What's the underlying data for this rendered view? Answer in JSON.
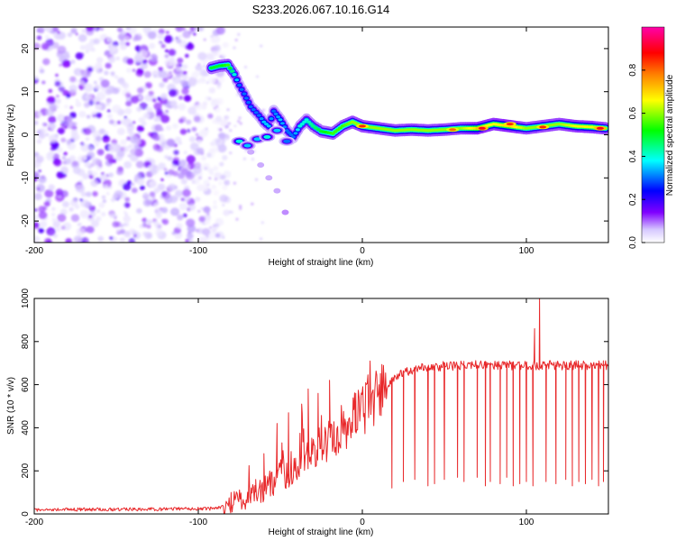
{
  "figure_title": "S233.2026.067.10.16.G14",
  "chart_data": [
    {
      "type": "heatmap",
      "title": "S233.2026.067.10.16.G14",
      "xlabel": "Height of straight line (km)",
      "ylabel": "Frequency (Hz)",
      "xlim": [
        -200,
        150
      ],
      "ylim": [
        -25,
        25
      ],
      "x_ticks": [
        -200,
        -100,
        0,
        100
      ],
      "x_tick_labels": [
        "-200",
        "-100",
        "0",
        "100"
      ],
      "y_ticks": [
        -20,
        -10,
        0,
        10,
        20
      ],
      "y_tick_labels": [
        "-20",
        "-10",
        "0",
        "10",
        "20"
      ],
      "colorbar": {
        "label": "Normalized spectral amplitude",
        "range": [
          0,
          1
        ],
        "ticks": [
          0.0,
          0.2,
          0.4,
          0.6,
          0.8
        ],
        "tick_labels": [
          "0.0",
          "0.2",
          "0.4",
          "0.6",
          "0.8"
        ],
        "colors": [
          "#ffffff",
          "#c8b4ff",
          "#8000ff",
          "#0000ff",
          "#00ffff",
          "#00ff00",
          "#ffff00",
          "#ff8000",
          "#ff0000",
          "#ff00aa"
        ]
      },
      "noise_region_x": [
        -200,
        -90
      ],
      "ridge_points": [
        {
          "x": -92,
          "y": 15.5,
          "a": 0.5
        },
        {
          "x": -87,
          "y": 16.0,
          "a": 0.5
        },
        {
          "x": -82,
          "y": 16.2,
          "a": 0.55
        },
        {
          "x": -78,
          "y": 14.0,
          "a": 0.4
        },
        {
          "x": -75,
          "y": 11.5,
          "a": 0.3
        },
        {
          "x": -72,
          "y": 9.5,
          "a": 0.3
        },
        {
          "x": -68,
          "y": 6.5,
          "a": 0.3
        },
        {
          "x": -63,
          "y": 4.5,
          "a": 0.3
        },
        {
          "x": -60,
          "y": 3.0,
          "a": 0.35
        },
        {
          "x": -57,
          "y": 2.0,
          "a": 0.35
        },
        {
          "x": -54,
          "y": 5.5,
          "a": 0.3
        },
        {
          "x": -50,
          "y": 3.5,
          "a": 0.35
        },
        {
          "x": -46,
          "y": 1.0,
          "a": 0.3
        },
        {
          "x": -42,
          "y": -0.5,
          "a": 0.3
        },
        {
          "x": -38,
          "y": 2.0,
          "a": 0.4
        },
        {
          "x": -34,
          "y": 3.5,
          "a": 0.4
        },
        {
          "x": -30,
          "y": 2.0,
          "a": 0.45
        },
        {
          "x": -25,
          "y": 0.8,
          "a": 0.5
        },
        {
          "x": -18,
          "y": 0.3,
          "a": 0.55
        },
        {
          "x": -12,
          "y": 2.0,
          "a": 0.55
        },
        {
          "x": -6,
          "y": 3.0,
          "a": 0.6
        },
        {
          "x": 0,
          "y": 2.0,
          "a": 0.6
        },
        {
          "x": 10,
          "y": 1.5,
          "a": 0.6
        },
        {
          "x": 20,
          "y": 1.0,
          "a": 0.6
        },
        {
          "x": 30,
          "y": 1.2,
          "a": 0.6
        },
        {
          "x": 40,
          "y": 1.0,
          "a": 0.6
        },
        {
          "x": 50,
          "y": 1.2,
          "a": 0.6
        },
        {
          "x": 60,
          "y": 1.5,
          "a": 0.6
        },
        {
          "x": 70,
          "y": 1.5,
          "a": 0.7
        },
        {
          "x": 80,
          "y": 2.5,
          "a": 0.65
        },
        {
          "x": 90,
          "y": 2.0,
          "a": 0.7
        },
        {
          "x": 100,
          "y": 1.5,
          "a": 0.6
        },
        {
          "x": 110,
          "y": 2.0,
          "a": 0.6
        },
        {
          "x": 120,
          "y": 2.5,
          "a": 0.6
        },
        {
          "x": 130,
          "y": 2.0,
          "a": 0.65
        },
        {
          "x": 140,
          "y": 1.8,
          "a": 0.65
        },
        {
          "x": 148,
          "y": 1.5,
          "a": 0.6
        }
      ],
      "hot_spots": [
        {
          "x": 0,
          "y": 2.0,
          "a": 0.85
        },
        {
          "x": 55,
          "y": 1.2,
          "a": 0.8
        },
        {
          "x": 73,
          "y": 1.5,
          "a": 0.9
        },
        {
          "x": 90,
          "y": 2.5,
          "a": 0.85
        },
        {
          "x": 110,
          "y": 1.8,
          "a": 0.85
        },
        {
          "x": 145,
          "y": 1.5,
          "a": 0.9
        }
      ],
      "lower_branch": [
        {
          "x": -75,
          "y": -1.5,
          "a": 0.4
        },
        {
          "x": -70,
          "y": -2.5,
          "a": 0.35
        },
        {
          "x": -64,
          "y": -1.0,
          "a": 0.35
        },
        {
          "x": -58,
          "y": -0.5,
          "a": 0.4
        },
        {
          "x": -52,
          "y": 1.0,
          "a": 0.35
        },
        {
          "x": -46,
          "y": -1.5,
          "a": 0.3
        }
      ],
      "faint_trail": [
        {
          "x": -68,
          "y": -4.0,
          "a": 0.08
        },
        {
          "x": -62,
          "y": -7.0,
          "a": 0.08
        },
        {
          "x": -57,
          "y": -10.0,
          "a": 0.08
        },
        {
          "x": -52,
          "y": -13.0,
          "a": 0.08
        },
        {
          "x": -47,
          "y": -18.0,
          "a": 0.1
        }
      ]
    },
    {
      "type": "line",
      "xlabel": "Height of straight line (km)",
      "ylabel": "SNR (10 * v/v)",
      "xlim": [
        -200,
        150
      ],
      "ylim": [
        0,
        1000
      ],
      "x_ticks": [
        -200,
        -100,
        0,
        100
      ],
      "x_tick_labels": [
        "-200",
        "-100",
        "0",
        "100"
      ],
      "y_ticks": [
        0,
        200,
        400,
        600,
        800,
        1000
      ],
      "y_tick_labels": [
        "0",
        "200",
        "400",
        "600",
        "800",
        "1000"
      ],
      "series": [
        {
          "name": "SNR",
          "color": "#e8282a",
          "baseline": [
            [
              -200,
              20
            ],
            [
              -120,
              22
            ],
            [
              -90,
              25
            ],
            [
              -75,
              60
            ],
            [
              -60,
              120
            ],
            [
              -45,
              200
            ],
            [
              -30,
              300
            ],
            [
              -15,
              380
            ],
            [
              0,
              480
            ],
            [
              10,
              560
            ],
            [
              20,
              640
            ],
            [
              35,
              680
            ],
            [
              60,
              690
            ],
            [
              100,
              690
            ],
            [
              150,
              690
            ]
          ],
          "spikes": [
            [
              -80,
              100
            ],
            [
              -65,
              160
            ],
            [
              -60,
              280
            ],
            [
              -52,
              420
            ],
            [
              -49,
              330
            ],
            [
              -45,
              470
            ],
            [
              -37,
              510
            ],
            [
              -33,
              580
            ],
            [
              -27,
              560
            ],
            [
              -20,
              620
            ],
            [
              -4,
              560
            ],
            [
              108,
              1000
            ],
            [
              105,
              860
            ]
          ],
          "dropouts": [
            [
              18,
              120
            ],
            [
              25,
              150
            ],
            [
              32,
              160
            ],
            [
              40,
              130
            ],
            [
              44,
              140
            ],
            [
              50,
              160
            ],
            [
              58,
              170
            ],
            [
              62,
              150
            ],
            [
              70,
              170
            ],
            [
              75,
              130
            ],
            [
              78,
              150
            ],
            [
              84,
              140
            ],
            [
              88,
              170
            ],
            [
              92,
              130
            ],
            [
              96,
              140
            ],
            [
              100,
              150
            ],
            [
              104,
              130
            ],
            [
              112,
              150
            ],
            [
              118,
              140
            ],
            [
              124,
              160
            ],
            [
              128,
              130
            ],
            [
              132,
              150
            ],
            [
              136,
              140
            ],
            [
              140,
              160
            ],
            [
              144,
              130
            ],
            [
              147,
              150
            ]
          ]
        }
      ]
    }
  ]
}
